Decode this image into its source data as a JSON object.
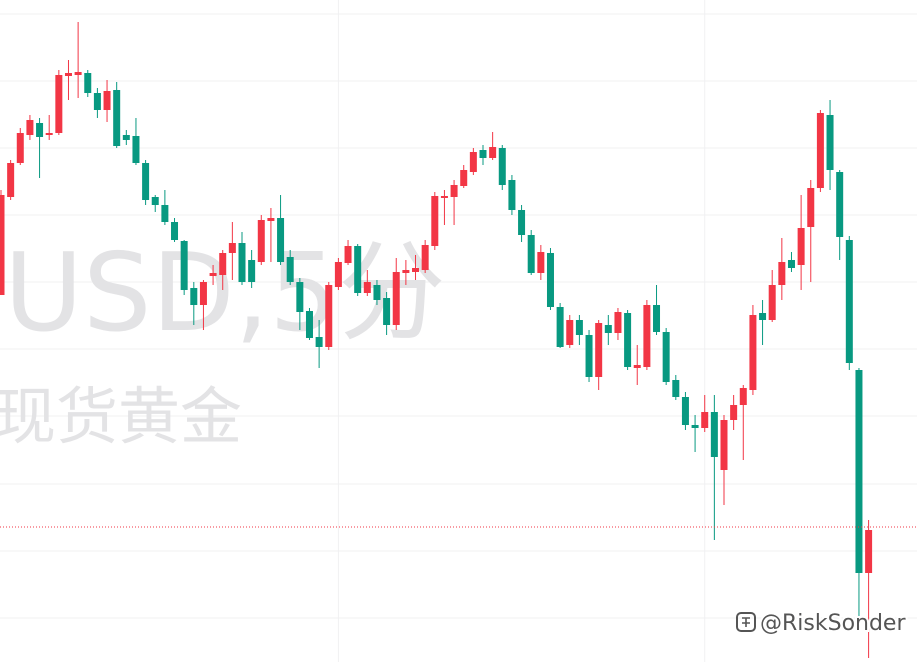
{
  "chart_data": {
    "type": "candlestick",
    "watermark_symbol": "USD,5分",
    "watermark_name": "现货黄金",
    "credit": "@RiskSonder",
    "up_color": "#f23645",
    "down_color": "#089981",
    "ylim": [
      0,
      662
    ],
    "grid": true,
    "grid_y": [
      648,
      581,
      514,
      447,
      380,
      313,
      246,
      178,
      111,
      44
    ],
    "grid_x": [
      35,
      73
    ],
    "price_line": 135,
    "ohlc": [
      [
        367,
        472,
        367,
        467
      ],
      [
        465,
        502,
        462,
        499
      ],
      [
        499,
        534,
        497,
        529
      ],
      [
        527,
        547,
        522,
        542
      ],
      [
        539,
        544,
        484,
        525
      ],
      [
        527,
        547,
        522,
        529
      ],
      [
        529,
        592,
        527,
        587
      ],
      [
        586,
        602,
        562,
        589
      ],
      [
        587,
        640,
        564,
        590
      ],
      [
        589,
        592,
        565,
        569
      ],
      [
        569,
        574,
        544,
        552
      ],
      [
        552,
        582,
        540,
        571
      ],
      [
        572,
        580,
        514,
        516
      ],
      [
        527,
        532,
        517,
        522
      ],
      [
        526,
        544,
        497,
        499
      ],
      [
        499,
        502,
        457,
        462
      ],
      [
        465,
        467,
        450,
        457
      ],
      [
        457,
        472,
        437,
        440
      ],
      [
        440,
        444,
        420,
        422
      ],
      [
        421,
        422,
        367,
        372
      ],
      [
        374,
        380,
        337,
        357
      ],
      [
        357,
        382,
        332,
        380
      ],
      [
        386,
        397,
        377,
        389
      ],
      [
        387,
        412,
        372,
        409
      ],
      [
        409,
        440,
        382,
        419
      ],
      [
        419,
        430,
        377,
        380
      ],
      [
        402,
        412,
        374,
        380
      ],
      [
        400,
        447,
        397,
        442
      ],
      [
        441,
        454,
        400,
        444
      ],
      [
        444,
        467,
        397,
        400
      ],
      [
        405,
        412,
        377,
        380
      ],
      [
        380,
        384,
        332,
        350
      ],
      [
        351,
        354,
        322,
        324
      ],
      [
        325,
        342,
        294,
        315
      ],
      [
        315,
        380,
        312,
        377
      ],
      [
        375,
        404,
        372,
        400
      ],
      [
        399,
        422,
        397,
        416
      ],
      [
        416,
        418,
        366,
        369
      ],
      [
        369,
        392,
        366,
        380
      ],
      [
        377,
        382,
        357,
        362
      ],
      [
        364,
        370,
        327,
        337
      ],
      [
        337,
        404,
        332,
        390
      ],
      [
        389,
        402,
        377,
        392
      ],
      [
        390,
        407,
        382,
        394
      ],
      [
        392,
        422,
        389,
        417
      ],
      [
        416,
        470,
        412,
        466
      ],
      [
        464,
        472,
        437,
        466
      ],
      [
        465,
        482,
        437,
        477
      ],
      [
        476,
        497,
        474,
        492
      ],
      [
        490,
        514,
        487,
        510
      ],
      [
        512,
        517,
        497,
        504
      ],
      [
        504,
        530,
        502,
        515
      ],
      [
        514,
        517,
        472,
        477
      ],
      [
        482,
        487,
        447,
        452
      ],
      [
        452,
        457,
        420,
        427
      ],
      [
        427,
        432,
        387,
        389
      ],
      [
        389,
        417,
        382,
        410
      ],
      [
        409,
        414,
        352,
        355
      ],
      [
        355,
        359,
        314,
        315
      ],
      [
        317,
        347,
        314,
        342
      ],
      [
        342,
        347,
        317,
        327
      ],
      [
        327,
        332,
        280,
        285
      ],
      [
        285,
        342,
        272,
        339
      ],
      [
        337,
        347,
        317,
        329
      ],
      [
        329,
        354,
        322,
        350
      ],
      [
        349,
        352,
        292,
        295
      ],
      [
        294,
        317,
        277,
        297
      ],
      [
        295,
        362,
        292,
        357
      ],
      [
        357,
        377,
        327,
        330
      ],
      [
        330,
        334,
        277,
        280
      ],
      [
        282,
        287,
        262,
        265
      ],
      [
        265,
        270,
        232,
        237
      ],
      [
        237,
        247,
        210,
        234
      ],
      [
        234,
        267,
        230,
        250
      ],
      [
        250,
        267,
        122,
        205
      ],
      [
        192,
        247,
        157,
        242
      ],
      [
        242,
        267,
        232,
        257
      ],
      [
        257,
        277,
        202,
        274
      ],
      [
        272,
        357,
        267,
        347
      ],
      [
        349,
        362,
        317,
        342
      ],
      [
        342,
        392,
        340,
        377
      ],
      [
        377,
        424,
        362,
        400
      ],
      [
        402,
        410,
        390,
        394
      ],
      [
        397,
        467,
        372,
        434
      ],
      [
        435,
        482,
        380,
        474
      ],
      [
        474,
        552,
        470,
        549
      ],
      [
        547,
        562,
        472,
        492
      ],
      [
        490,
        492,
        402,
        425
      ],
      [
        422,
        426,
        292,
        299
      ],
      [
        292,
        294,
        42,
        89
      ],
      [
        89,
        142,
        4,
        132
      ]
    ]
  }
}
